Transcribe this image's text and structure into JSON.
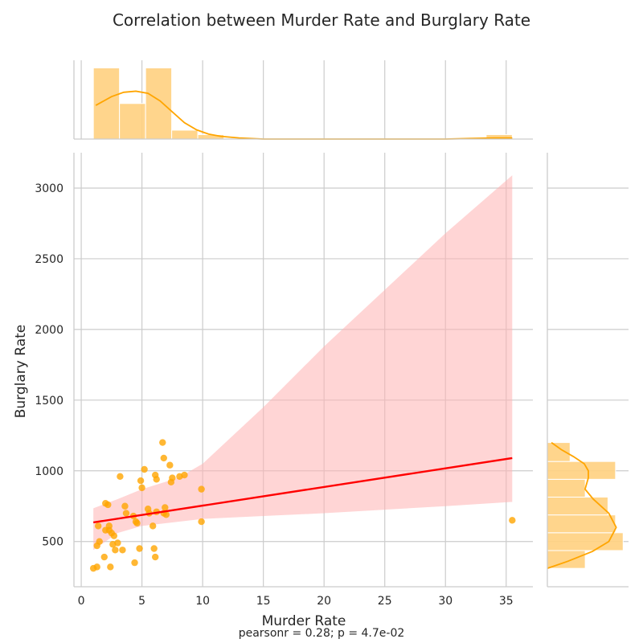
{
  "chart_data": {
    "type": "scatter",
    "title": "Correlation between Murder Rate and Burglary Rate",
    "xlabel": "Murder Rate",
    "ylabel": "Burglary Rate",
    "annotation": "pearsonr = 0.28; p = 4.7e-02",
    "xlim": [
      -0.6,
      37.2
    ],
    "ylim": [
      180,
      3250
    ],
    "xticks": [
      0,
      5,
      10,
      15,
      20,
      25,
      30,
      35
    ],
    "yticks": [
      500,
      1000,
      1500,
      2000,
      2500,
      3000
    ],
    "grid": true,
    "colors": {
      "points": "#ffa500",
      "regression": "#ff0000",
      "ci_band": "#ffb3b3",
      "hist": "#ffd080",
      "kde": "#ffa500"
    },
    "series": [
      {
        "x": [
          1.0,
          1.3,
          1.3,
          1.5,
          1.9,
          2.0,
          2.2,
          2.3,
          2.3,
          2.4,
          2.5,
          2.6,
          2.7,
          2.8,
          3.0,
          3.2,
          3.4,
          3.6,
          3.7,
          4.3,
          4.4,
          4.5,
          4.6,
          4.8,
          4.9,
          5.0,
          5.2,
          5.5,
          5.6,
          5.9,
          6.0,
          6.1,
          6.1,
          6.2,
          6.2,
          6.7,
          6.8,
          6.9,
          7.0,
          7.3,
          7.4,
          7.5,
          8.1,
          8.5,
          9.9,
          9.9,
          35.5,
          1.4,
          2.0,
          6.8
        ],
        "y": [
          310,
          320,
          470,
          500,
          390,
          770,
          760,
          580,
          610,
          320,
          560,
          480,
          540,
          440,
          490,
          960,
          440,
          750,
          700,
          680,
          350,
          640,
          630,
          450,
          930,
          880,
          1010,
          730,
          700,
          610,
          450,
          390,
          970,
          940,
          710,
          1200,
          1090,
          740,
          690,
          1040,
          920,
          950,
          960,
          970,
          870,
          640,
          650,
          610,
          580,
          700
        ]
      }
    ],
    "regression": {
      "x": [
        1.0,
        35.5
      ],
      "y": [
        635,
        1090
      ]
    },
    "ci_band": {
      "x": [
        1.0,
        3.0,
        5.0,
        8.0,
        10.0,
        15.0,
        20.0,
        25.0,
        30.0,
        35.5
      ],
      "upper": [
        735,
        800,
        870,
        950,
        1050,
        1450,
        1880,
        2280,
        2680,
        3090
      ],
      "lower": [
        440,
        560,
        610,
        640,
        660,
        680,
        700,
        725,
        750,
        780
      ]
    },
    "x_hist": {
      "bins": [
        1.0,
        3.15,
        5.3,
        7.45,
        9.6,
        11.75,
        33.35,
        35.5
      ],
      "counts": [
        16,
        8,
        16,
        2,
        1,
        0,
        1
      ],
      "max_count": 17,
      "kde": {
        "x": [
          1.2,
          2.5,
          3.5,
          4.5,
          5.5,
          6.5,
          7.5,
          8.5,
          9.5,
          10.5,
          11.5,
          13,
          15,
          20,
          25,
          30,
          32,
          34,
          35.5
        ],
        "density": [
          0.62,
          0.78,
          0.86,
          0.88,
          0.84,
          0.7,
          0.5,
          0.3,
          0.17,
          0.09,
          0.05,
          0.02,
          0.0,
          0.0,
          0.0,
          0.0,
          0.01,
          0.02,
          0.02
        ]
      }
    },
    "y_hist": {
      "bins": [
        310,
        436,
        562,
        688,
        814,
        940,
        1066,
        1200
      ],
      "counts": [
        5,
        10,
        9,
        8,
        5,
        9,
        3
      ],
      "max_count": 10.5,
      "kde": {
        "y": [
          310,
          360,
          430,
          500,
          600,
          700,
          800,
          870,
          950,
          1000,
          1050,
          1100,
          1150,
          1200
        ],
        "density": [
          0.0,
          0.25,
          0.55,
          0.75,
          0.84,
          0.75,
          0.56,
          0.46,
          0.5,
          0.5,
          0.45,
          0.32,
          0.17,
          0.05
        ]
      }
    }
  }
}
